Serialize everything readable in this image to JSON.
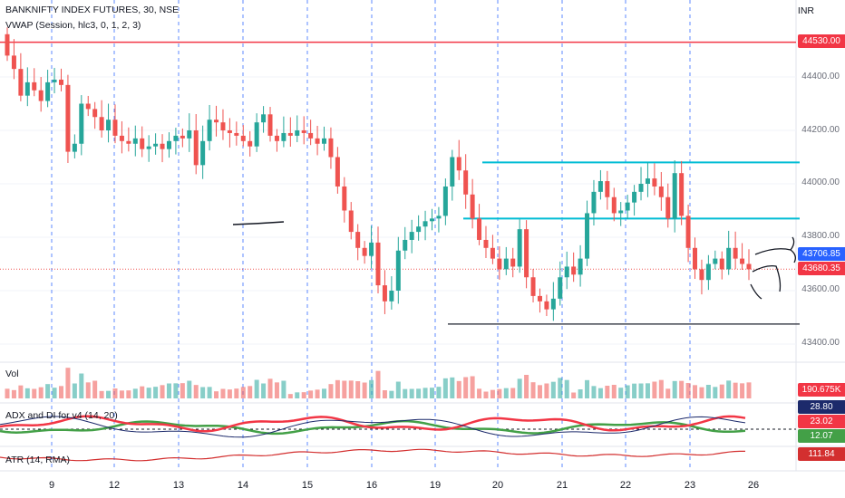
{
  "header": {
    "symbol_line": "BANKNIFTY INDEX FUTURES, 30, NSE",
    "indicator_line": "VWAP (Session, hlc3, 0, 1, 2, 3)",
    "currency": "INR"
  },
  "price_axis": {
    "ticks": [
      "44400.00",
      "44200.00",
      "44000.00",
      "43800.00",
      "43600.00",
      "43400.00"
    ],
    "tick_values": [
      44400,
      44200,
      44000,
      43800,
      43600,
      43400
    ]
  },
  "price_tags": {
    "resistance": "44530.00",
    "vwap": "43706.85",
    "last": "43680.35",
    "volume": "190.675K",
    "adx": "28.80",
    "di_plus": "23.02",
    "di_minus": "12.07",
    "atr": "111.84"
  },
  "panes": {
    "volume_label": "Vol",
    "adx_label": "ADX and DI for v4 (14, 20)",
    "atr_label": "ATR (14, RMA)"
  },
  "time_axis": {
    "labels": [
      "9",
      "12",
      "13",
      "14",
      "15",
      "16",
      "19",
      "20",
      "21",
      "22",
      "23",
      "26"
    ]
  },
  "colors": {
    "up": "#26a69a",
    "down": "#ef5350",
    "resistance_line": "#f23645",
    "cyan_line": "#00bcd4",
    "support_line": "#434651",
    "separator": "#2962ff",
    "vwap_tag": "#2962ff",
    "adx_line": "#1c2a6b",
    "di_plus": "#f23645",
    "di_minus": "#43a047",
    "atr_line": "#d32f2f"
  },
  "chart_data": {
    "type": "candlestick",
    "symbol": "BANKNIFTY INDEX FUTURES",
    "interval": "30",
    "ylim": [
      43350,
      44600
    ],
    "horizontal_lines": [
      {
        "value": 44530,
        "kind": "resistance"
      },
      {
        "value": 44080,
        "kind": "trendline"
      },
      {
        "value": 43870,
        "kind": "trendline"
      },
      {
        "value": 43475,
        "kind": "support"
      }
    ],
    "last_price": 43680.35,
    "vwap": 43706.85,
    "day_labels": [
      "9",
      "12",
      "13",
      "14",
      "15",
      "16",
      "19",
      "20",
      "21",
      "22",
      "23",
      "26"
    ],
    "closes": [
      44480,
      44430,
      44330,
      44380,
      44350,
      44310,
      44380,
      44390,
      44370,
      44120,
      44150,
      44300,
      44280,
      44250,
      44200,
      44240,
      44180,
      44160,
      44150,
      44170,
      44130,
      44140,
      44150,
      44130,
      44160,
      44180,
      44170,
      44200,
      44070,
      44160,
      44240,
      44230,
      44200,
      44190,
      44180,
      44160,
      44140,
      44230,
      44260,
      44180,
      44160,
      44190,
      44180,
      44200,
      44190,
      44170,
      44150,
      44170,
      44100,
      43990,
      43900,
      43820,
      43760,
      43730,
      43780,
      43620,
      43560,
      43600,
      43750,
      43790,
      43820,
      43840,
      43860,
      43870,
      43880,
      43990,
      44100,
      44050,
      43960,
      43870,
      43790,
      43760,
      43720,
      43680,
      43720,
      43690,
      43830,
      43650,
      43580,
      43560,
      43530,
      43570,
      43650,
      43690,
      43660,
      43720,
      43890,
      43970,
      44010,
      43950,
      43890,
      43900,
      43930,
      43970,
      44000,
      44020,
      43990,
      43950,
      43870,
      44040,
      43880,
      43760,
      43680,
      43640,
      43700,
      43720,
      43680,
      43760,
      43720,
      43700,
      43680
    ],
    "volume_units": "K",
    "last_volume": 190.675,
    "adx": 28.8,
    "di_plus": 23.02,
    "di_minus": 12.07,
    "atr": 111.84
  }
}
